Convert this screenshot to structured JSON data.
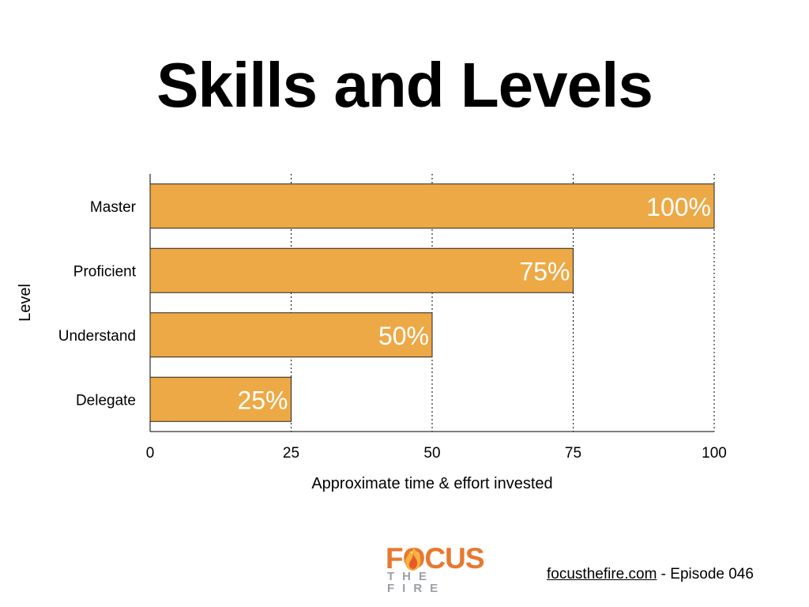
{
  "slide": {
    "title": "Skills and Levels"
  },
  "chart_data": {
    "type": "bar",
    "orientation": "horizontal",
    "title": "Skills and Levels",
    "xlabel": "Approximate time & effort invested",
    "ylabel": "Level",
    "categories": [
      "Master",
      "Proficient",
      "Understand",
      "Delegate"
    ],
    "values": [
      100,
      75,
      50,
      25
    ],
    "data_labels": [
      "100%",
      "75%",
      "50%",
      "25%"
    ],
    "xlim": [
      0,
      100
    ],
    "xticks": [
      0,
      25,
      50,
      75,
      100
    ],
    "grid": "vertical dotted",
    "bar_color": "#eda946",
    "label_color": "#ffffff",
    "legend": "none"
  },
  "logo": {
    "main_text": "FOCUS",
    "sub_text": "THE FIRE",
    "brand_color": "#e8782f",
    "sub_color": "#9aa0a6",
    "icon": "flame-icon"
  },
  "footer": {
    "link_text": "focusthefire.com",
    "episode_text": " - Episode 046"
  }
}
